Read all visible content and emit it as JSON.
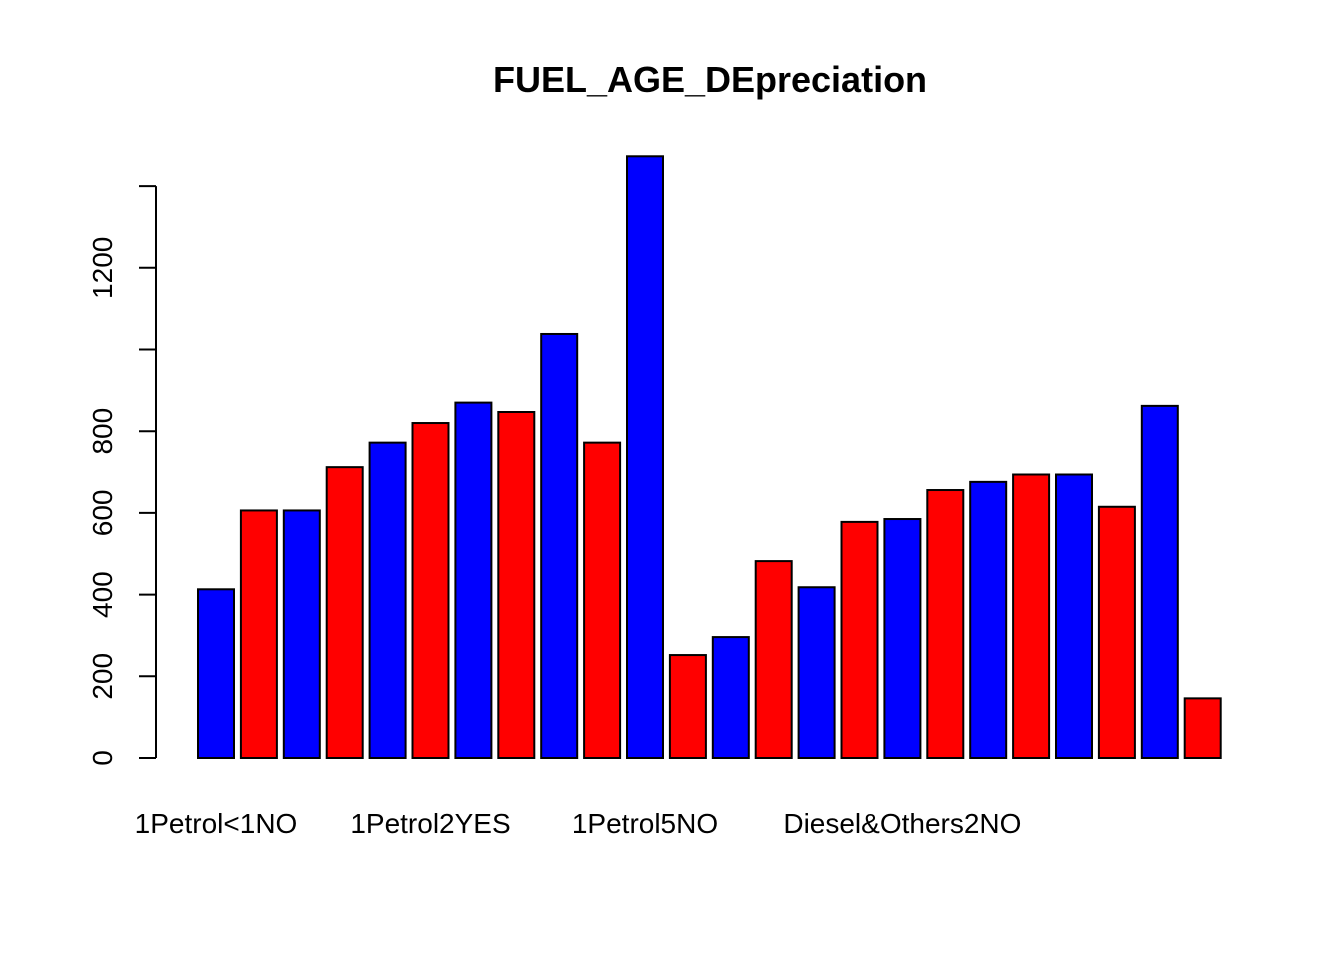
{
  "chart_data": {
    "type": "bar",
    "title": "FUEL_AGE_DEpreciation",
    "xlabel": "",
    "ylabel": "",
    "ylim": [
      0,
      1470
    ],
    "yticks": [
      0,
      200,
      400,
      600,
      800,
      1000,
      1200,
      1400
    ],
    "ytick_labels": [
      "0",
      "200",
      "400",
      "600",
      "800",
      "",
      "1200",
      ""
    ],
    "values": [
      413,
      606,
      606,
      712,
      772,
      820,
      870,
      847,
      1038,
      772,
      1473,
      252,
      296,
      482,
      418,
      578,
      585,
      656,
      676,
      694,
      694,
      615,
      862,
      146
    ],
    "bar_colors": [
      "#0000ff",
      "#ff0000",
      "#0000ff",
      "#ff0000",
      "#0000ff",
      "#ff0000",
      "#0000ff",
      "#ff0000",
      "#0000ff",
      "#ff0000",
      "#0000ff",
      "#ff0000",
      "#0000ff",
      "#ff0000",
      "#0000ff",
      "#ff0000",
      "#0000ff",
      "#ff0000",
      "#0000ff",
      "#ff0000",
      "#0000ff",
      "#ff0000",
      "#0000ff",
      "#ff0000"
    ],
    "category_labels": [
      {
        "bar_index": 0,
        "text": "1Petrol<1NO"
      },
      {
        "bar_index": 5,
        "text": "1Petrol2YES"
      },
      {
        "bar_index": 10,
        "text": "1Petrol5NO"
      },
      {
        "bar_index": 16,
        "text": "Diesel&Others2NO"
      }
    ],
    "colors": {
      "blue": "#0000ff",
      "red": "#ff0000"
    }
  }
}
